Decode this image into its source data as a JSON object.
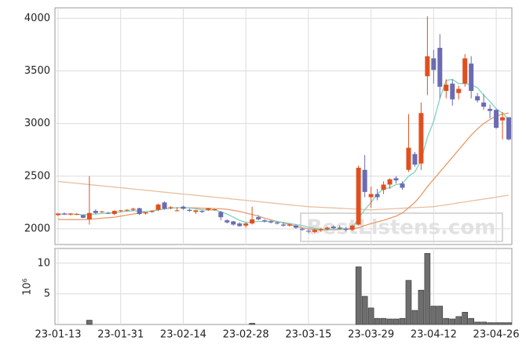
{
  "chart_data": [
    {
      "type": "candlestick",
      "ylim": [
        1850,
        4100
      ],
      "yticks": [
        2000,
        2500,
        3000,
        3500,
        4000
      ],
      "grid": true,
      "up_color": "#e0501f",
      "down_color": "#6b6bb3",
      "watermark": "BestListens.com",
      "open": [
        2130,
        2145,
        2135,
        2140,
        2130,
        2090,
        2170,
        2160,
        2150,
        2140,
        2170,
        2175,
        2180,
        2195,
        2145,
        2160,
        2180,
        2250,
        2200,
        2170,
        2210,
        2180,
        2160,
        2170,
        2180,
        2180,
        2160,
        2080,
        2070,
        2050,
        2030,
        2050,
        2110,
        2080,
        2070,
        2060,
        2040,
        2030,
        2030,
        2000,
        1980,
        1970,
        1985,
        1995,
        2020,
        2010,
        2000,
        1990,
        2040,
        2560,
        2300,
        2330,
        2370,
        2420,
        2480,
        2430,
        2560,
        2710,
        2620,
        3450,
        3620,
        3720,
        3310,
        3380,
        3290,
        3380,
        3570,
        3260,
        3200,
        3140,
        3130,
        3030,
        3060
      ],
      "high": [
        2150,
        2155,
        2150,
        2150,
        2135,
        2500,
        2185,
        2170,
        2160,
        2175,
        2180,
        2185,
        2200,
        2200,
        2160,
        2175,
        2240,
        2260,
        2215,
        2205,
        2220,
        2190,
        2180,
        2175,
        2200,
        2190,
        2170,
        2090,
        2075,
        2060,
        2060,
        2210,
        2130,
        2090,
        2080,
        2070,
        2060,
        2050,
        2040,
        2010,
        1995,
        2000,
        2010,
        2020,
        2030,
        2030,
        2020,
        2040,
        2600,
        2700,
        2400,
        2380,
        2450,
        2480,
        2500,
        2450,
        3090,
        2730,
        3200,
        4020,
        3700,
        3850,
        3420,
        3420,
        3360,
        3660,
        3640,
        3290,
        3280,
        3180,
        3140,
        3110,
        3060
      ],
      "low": [
        2120,
        2130,
        2125,
        2130,
        2100,
        2040,
        2140,
        2150,
        2140,
        2130,
        2160,
        2165,
        2170,
        2130,
        2135,
        2150,
        2170,
        2180,
        2185,
        2165,
        2180,
        2160,
        2140,
        2150,
        2170,
        2170,
        2080,
        2050,
        2030,
        2020,
        2010,
        2040,
        2080,
        2060,
        2050,
        2040,
        2020,
        2020,
        2000,
        1980,
        1960,
        1960,
        1970,
        1985,
        2000,
        1990,
        1975,
        1980,
        2030,
        2300,
        2200,
        2270,
        2330,
        2380,
        2430,
        2370,
        2540,
        2590,
        2560,
        3270,
        3380,
        3240,
        3240,
        3170,
        3230,
        3350,
        3240,
        3200,
        3130,
        3050,
        2950,
        2850,
        2840
      ],
      "close": [
        2145,
        2135,
        2145,
        2140,
        2105,
        2150,
        2150,
        2165,
        2145,
        2170,
        2175,
        2180,
        2190,
        2140,
        2155,
        2170,
        2230,
        2190,
        2205,
        2175,
        2190,
        2170,
        2175,
        2160,
        2195,
        2185,
        2110,
        2060,
        2040,
        2025,
        2050,
        2090,
        2090,
        2070,
        2060,
        2050,
        2030,
        2040,
        2010,
        1990,
        1975,
        1990,
        1995,
        2010,
        2005,
        2000,
        1990,
        2030,
        2580,
        2350,
        2330,
        2300,
        2420,
        2470,
        2460,
        2390,
        2770,
        2610,
        3100,
        3640,
        3510,
        3350,
        3370,
        3230,
        3330,
        3620,
        3310,
        3220,
        3160,
        3120,
        2960,
        3060,
        2850
      ],
      "lines": [
        {
          "color": "#e8bfa0",
          "values": [
            2450,
            2444,
            2438,
            2432,
            2426,
            2420,
            2414,
            2408,
            2402,
            2396,
            2390,
            2384,
            2378,
            2372,
            2366,
            2360,
            2354,
            2348,
            2342,
            2336,
            2330,
            2324,
            2318,
            2312,
            2306,
            2300,
            2294,
            2288,
            2282,
            2276,
            2270,
            2264,
            2258,
            2252,
            2246,
            2240,
            2234,
            2228,
            2222,
            2216,
            2210,
            2207,
            2204,
            2201,
            2198,
            2195,
            2192,
            2189,
            2186,
            2183,
            2180,
            2183,
            2186,
            2189,
            2192,
            2195,
            2198,
            2201,
            2204,
            2207,
            2210,
            2219,
            2228,
            2237,
            2246,
            2255,
            2264,
            2273,
            2282,
            2291,
            2300,
            2310,
            2320
          ]
        },
        {
          "color": "#e89a6a",
          "values": [
            2090,
            2088,
            2087,
            2087,
            2088,
            2090,
            2095,
            2100,
            2105,
            2110,
            2120,
            2130,
            2140,
            2150,
            2160,
            2170,
            2180,
            2190,
            2195,
            2200,
            2200,
            2200,
            2198,
            2196,
            2194,
            2192,
            2190,
            2185,
            2175,
            2165,
            2150,
            2135,
            2120,
            2100,
            2085,
            2070,
            2055,
            2040,
            2025,
            2010,
            2000,
            1995,
            1990,
            1990,
            1990,
            1992,
            1995,
            2000,
            2010,
            2030,
            2050,
            2065,
            2080,
            2100,
            2120,
            2150,
            2200,
            2250,
            2320,
            2400,
            2470,
            2540,
            2610,
            2680,
            2750,
            2820,
            2890,
            2950,
            3000,
            3040,
            3070,
            3090,
            3100
          ]
        },
        {
          "color": "#7fd3bf",
          "values": [
            2140,
            2140,
            2140,
            2138,
            2132,
            2136,
            2140,
            2145,
            2150,
            2152,
            2160,
            2167,
            2172,
            2166,
            2164,
            2168,
            2178,
            2190,
            2195,
            2200,
            2200,
            2198,
            2190,
            2180,
            2178,
            2180,
            2160,
            2140,
            2110,
            2080,
            2060,
            2065,
            2070,
            2070,
            2072,
            2070,
            2060,
            2050,
            2040,
            2030,
            2015,
            2005,
            1995,
            1990,
            1995,
            2002,
            2000,
            2008,
            2100,
            2180,
            2250,
            2330,
            2380,
            2390,
            2420,
            2430,
            2500,
            2540,
            2650,
            2870,
            3020,
            3240,
            3410,
            3420,
            3380,
            3380,
            3370,
            3340,
            3270,
            3210,
            3140,
            3100,
            3040
          ]
        }
      ]
    },
    {
      "type": "bar",
      "y_label": "10⁶",
      "color": "#6e6e6e",
      "ylim": [
        0,
        12.4
      ],
      "yticks": [
        5,
        10
      ],
      "grid": true,
      "categories": [
        "23-01-13",
        null,
        null,
        null,
        null,
        null,
        null,
        null,
        null,
        null,
        "23-01-31",
        null,
        null,
        null,
        null,
        null,
        null,
        null,
        null,
        null,
        "23-02-14",
        null,
        null,
        null,
        null,
        null,
        null,
        null,
        null,
        null,
        "23-02-28",
        null,
        null,
        null,
        null,
        null,
        null,
        null,
        null,
        null,
        "23-03-15",
        null,
        null,
        null,
        null,
        null,
        null,
        null,
        null,
        null,
        "23-03-29",
        null,
        null,
        null,
        null,
        null,
        null,
        null,
        null,
        null,
        "23-04-12",
        null,
        null,
        null,
        null,
        null,
        null,
        null,
        null,
        null,
        "23-04-26",
        null,
        null
      ],
      "values": [
        0,
        0,
        0,
        0,
        0,
        0.7,
        0,
        0,
        0,
        0,
        0,
        0,
        0,
        0,
        0,
        0,
        0,
        0,
        0,
        0,
        0,
        0,
        0,
        0,
        0,
        0,
        0,
        0,
        0,
        0,
        0,
        0.2,
        0,
        0,
        0,
        0,
        0,
        0,
        0,
        0,
        0,
        0,
        0,
        0,
        0,
        0,
        0,
        0,
        9.4,
        4.6,
        2.7,
        1.0,
        1.0,
        0.9,
        0.9,
        1.0,
        7.2,
        2.3,
        5.6,
        11.6,
        3.0,
        3.0,
        1.0,
        0.9,
        1.3,
        2.0,
        1.0,
        0.4,
        0.4,
        0.3,
        0.3,
        0.3,
        0.3
      ]
    }
  ]
}
